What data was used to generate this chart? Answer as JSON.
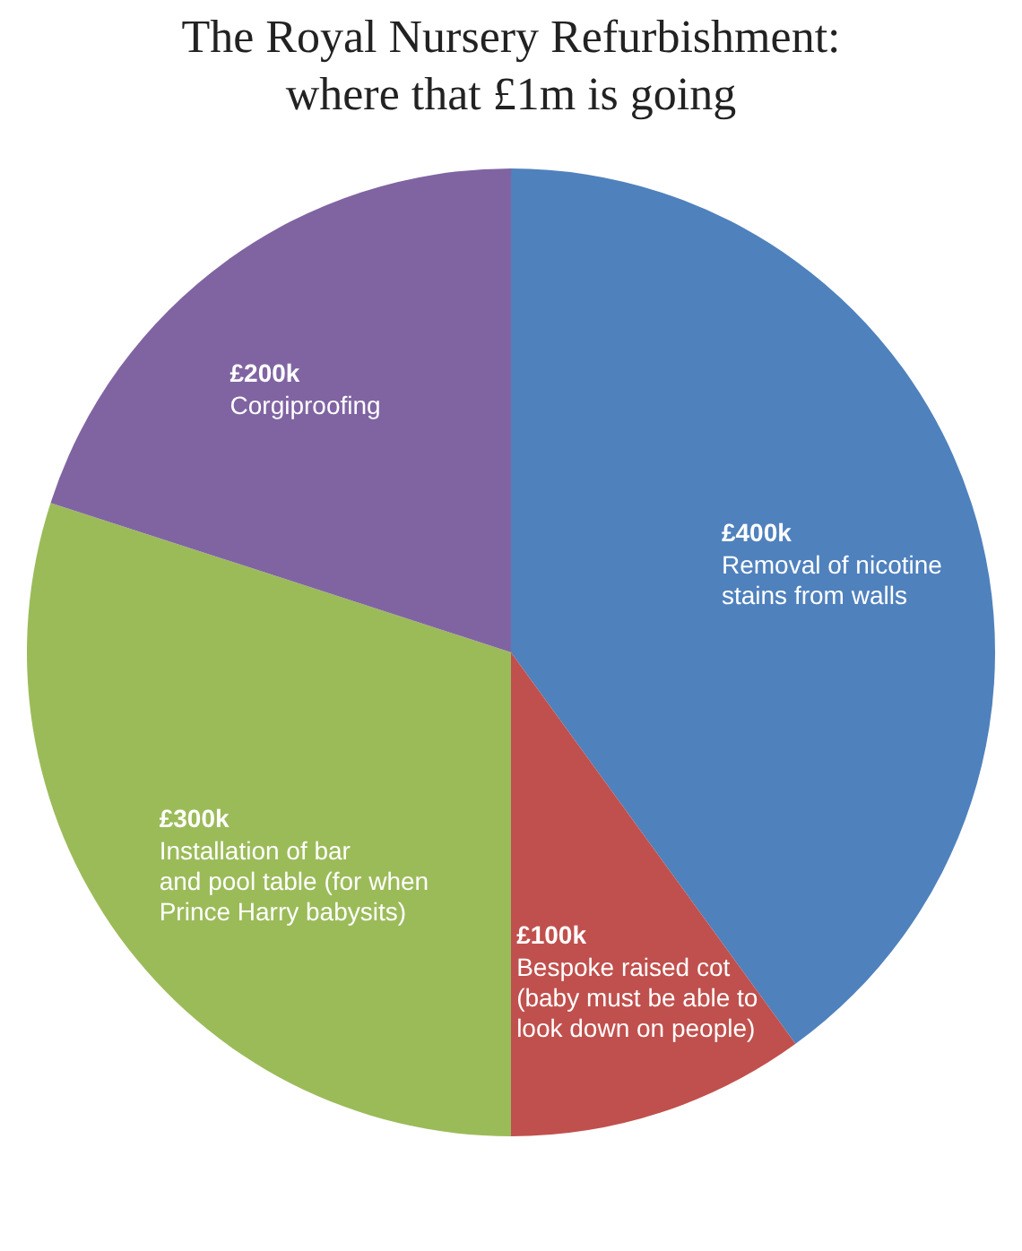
{
  "chart_data": {
    "type": "pie",
    "title": "The Royal Nursery Refurbishment:\nwhere that £1m is going",
    "categories": [
      "Removal of nicotine\nstains from walls",
      "Bespoke raised cot\n(baby must be able to\nlook down on people)",
      "Installation of bar\nand pool table (for when\nPrince Harry babysits)",
      "Corgiproofing"
    ],
    "values": [
      400,
      100,
      300,
      200
    ],
    "value_labels": [
      "£400k",
      "£100k",
      "£300k",
      "£200k"
    ],
    "colors": [
      "#4f81bd",
      "#c0504d",
      "#9bbb59",
      "#8064a2"
    ],
    "legend": false
  }
}
